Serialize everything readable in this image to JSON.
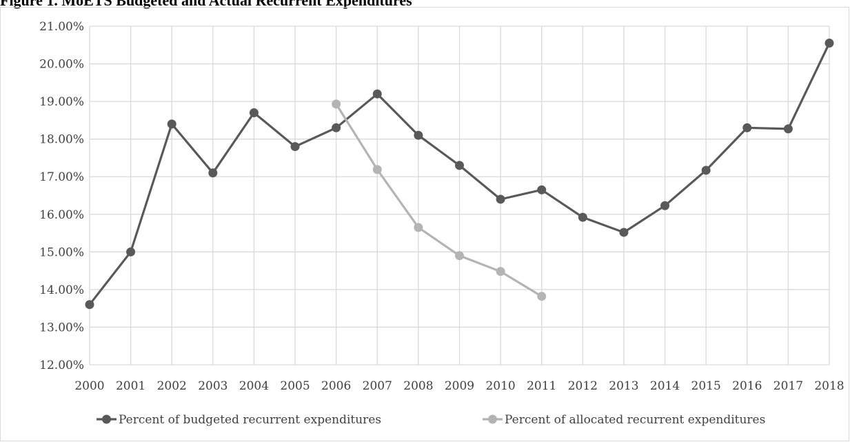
{
  "figure_title": "Figure 1. MoETS Budgeted and Actual Recurrent Expenditures",
  "colors": {
    "budgeted": "#595959",
    "allocated": "#b4b4b4",
    "grid": "#d9d9d9",
    "text": "#404040"
  },
  "chart_data": {
    "type": "line",
    "title": "",
    "xlabel": "",
    "ylabel": "",
    "categories": [
      "2000",
      "2001",
      "2002",
      "2003",
      "2004",
      "2005",
      "2006",
      "2007",
      "2008",
      "2009",
      "2010",
      "2011",
      "2012",
      "2013",
      "2014",
      "2015",
      "2016",
      "2017",
      "2018"
    ],
    "ylim": [
      12,
      21
    ],
    "ytick_step": 1,
    "ytick_labels": [
      "12.00%",
      "13.00%",
      "14.00%",
      "15.00%",
      "16.00%",
      "17.00%",
      "18.00%",
      "19.00%",
      "20.00%",
      "21.00%"
    ],
    "grid": true,
    "legend_position": "bottom",
    "series": [
      {
        "name": "Percent of budgeted recurrent expenditures",
        "color": "#595959",
        "values": [
          13.6,
          15.0,
          18.4,
          17.1,
          18.7,
          17.8,
          18.3,
          19.2,
          18.1,
          17.3,
          16.4,
          16.65,
          15.92,
          15.52,
          16.23,
          17.17,
          18.3,
          18.27,
          20.55
        ]
      },
      {
        "name": "Percent of allocated recurrent expenditures",
        "color": "#b4b4b4",
        "values": [
          null,
          null,
          null,
          null,
          null,
          null,
          18.93,
          17.19,
          15.65,
          14.9,
          14.48,
          13.82,
          null,
          null,
          null,
          null,
          null,
          null,
          null
        ]
      }
    ]
  }
}
